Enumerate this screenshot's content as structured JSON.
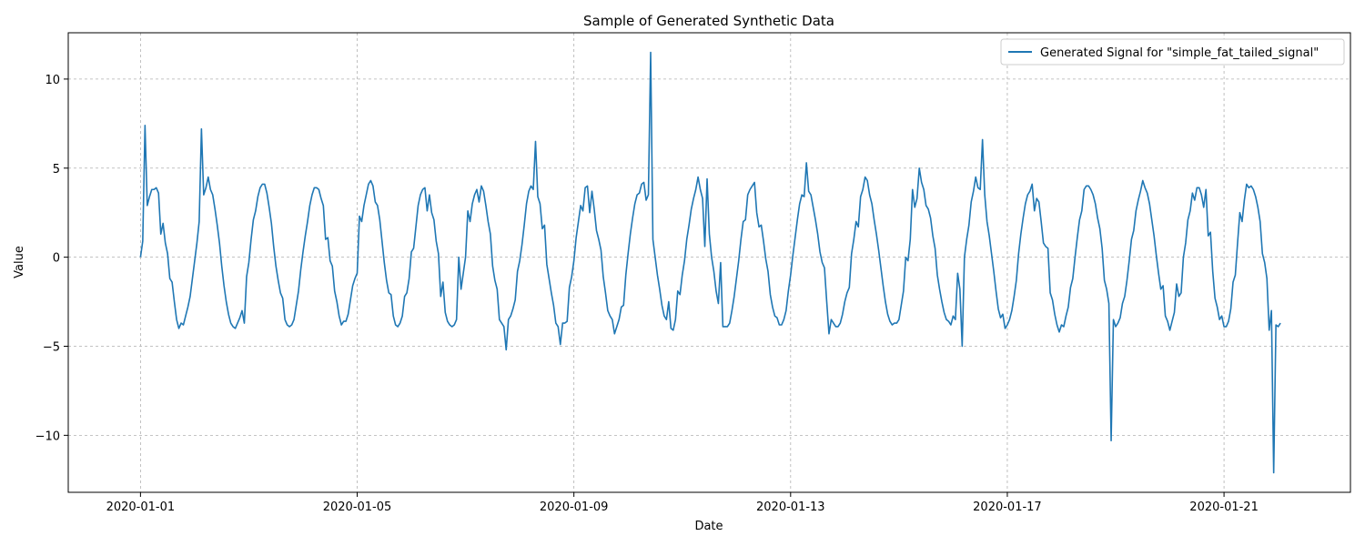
{
  "chart_data": {
    "type": "line",
    "title": "Sample of Generated Synthetic Data",
    "xlabel": "Date",
    "ylabel": "Value",
    "xlim": [
      "2019-12-30T16:00",
      "2020-01-23T08:00"
    ],
    "ylim": [
      -13.2,
      12.6
    ],
    "x_ticks": [
      "2020-01-01",
      "2020-01-05",
      "2020-01-09",
      "2020-01-13",
      "2020-01-17",
      "2020-01-21"
    ],
    "y_ticks": [
      -10,
      -5,
      0,
      5,
      10
    ],
    "y_tick_labels": [
      "−10",
      "−5",
      "0",
      "5",
      "10"
    ],
    "grid": true,
    "legend_position": "top-right",
    "series": [
      {
        "name": "Generated Signal for \"simple_fat_tailed_signal\"",
        "color": "#1f77b4",
        "start": "2020-01-01T00:00",
        "interval_hours": 1,
        "values": [
          0.0,
          0.9,
          7.4,
          2.9,
          3.4,
          3.8,
          3.8,
          3.9,
          3.6,
          1.3,
          1.9,
          0.8,
          0.2,
          -1.2,
          -1.4,
          -2.5,
          -3.5,
          -4.0,
          -3.7,
          -3.8,
          -3.3,
          -2.8,
          -2.2,
          -1.2,
          -0.2,
          0.8,
          2.0,
          7.2,
          3.5,
          3.9,
          4.5,
          3.8,
          3.5,
          2.7,
          1.8,
          0.8,
          -0.5,
          -1.6,
          -2.5,
          -3.2,
          -3.7,
          -3.9,
          -4.0,
          -3.7,
          -3.4,
          -3.0,
          -3.7,
          -1.1,
          -0.3,
          1.0,
          2.1,
          2.6,
          3.4,
          3.9,
          4.1,
          4.1,
          3.6,
          2.8,
          1.9,
          0.6,
          -0.5,
          -1.3,
          -2.0,
          -2.3,
          -3.5,
          -3.8,
          -3.9,
          -3.8,
          -3.5,
          -2.7,
          -1.9,
          -0.7,
          0.3,
          1.2,
          2.0,
          2.9,
          3.5,
          3.9,
          3.9,
          3.8,
          3.3,
          2.9,
          1.0,
          1.1,
          -0.2,
          -0.5,
          -1.9,
          -2.5,
          -3.3,
          -3.8,
          -3.6,
          -3.6,
          -3.2,
          -2.4,
          -1.6,
          -1.2,
          -0.9,
          2.3,
          2.0,
          2.9,
          3.5,
          4.1,
          4.3,
          4.0,
          3.1,
          2.9,
          2.1,
          0.9,
          -0.3,
          -1.3,
          -2.0,
          -2.1,
          -3.3,
          -3.8,
          -3.9,
          -3.7,
          -3.3,
          -2.2,
          -2.0,
          -1.2,
          0.3,
          0.5,
          1.7,
          2.9,
          3.5,
          3.8,
          3.9,
          2.6,
          3.5,
          2.5,
          2.1,
          0.9,
          0.2,
          -2.2,
          -1.4,
          -3.1,
          -3.6,
          -3.8,
          -3.9,
          -3.8,
          -3.5,
          0.0,
          -1.8,
          -0.9,
          0.0,
          2.6,
          2.0,
          3.0,
          3.5,
          3.8,
          3.1,
          4.0,
          3.7,
          2.9,
          2.0,
          1.3,
          -0.5,
          -1.3,
          -1.8,
          -3.5,
          -3.7,
          -3.9,
          -5.2,
          -3.5,
          -3.3,
          -2.9,
          -2.4,
          -0.8,
          -0.2,
          0.7,
          1.8,
          3.0,
          3.7,
          4.0,
          3.8,
          6.5,
          3.4,
          3.0,
          1.6,
          1.8,
          -0.4,
          -1.2,
          -2.0,
          -2.7,
          -3.7,
          -3.9,
          -4.9,
          -3.7,
          -3.7,
          -3.6,
          -1.7,
          -1.1,
          -0.2,
          1.1,
          2.0,
          2.9,
          2.6,
          3.9,
          4.0,
          2.5,
          3.7,
          2.7,
          1.5,
          1.0,
          0.4,
          -1.1,
          -2.0,
          -3.0,
          -3.3,
          -3.5,
          -4.3,
          -3.9,
          -3.5,
          -2.8,
          -2.7,
          -1.0,
          0.2,
          1.3,
          2.2,
          3.0,
          3.5,
          3.6,
          4.1,
          4.2,
          3.2,
          3.5,
          11.5,
          1.0,
          0.0,
          -1.0,
          -1.8,
          -2.7,
          -3.3,
          -3.5,
          -2.5,
          -4.0,
          -4.1,
          -3.5,
          -1.9,
          -2.1,
          -1.0,
          -0.2,
          1.0,
          1.8,
          2.7,
          3.3,
          3.8,
          4.5,
          3.8,
          3.3,
          0.6,
          4.4,
          1.3,
          0.0,
          -0.8,
          -1.9,
          -2.6,
          -0.3,
          -3.9,
          -3.9,
          -3.9,
          -3.7,
          -3.0,
          -2.2,
          -1.2,
          -0.2,
          1.0,
          2.0,
          2.1,
          3.5,
          3.8,
          4.0,
          4.2,
          2.5,
          1.7,
          1.8,
          0.9,
          -0.1,
          -0.8,
          -2.1,
          -2.8,
          -3.3,
          -3.4,
          -3.8,
          -3.8,
          -3.5,
          -3.0,
          -1.9,
          -1.0,
          0.1,
          1.1,
          2.1,
          3.0,
          3.5,
          3.4,
          5.3,
          3.7,
          3.5,
          2.8,
          2.1,
          1.3,
          0.3,
          -0.3,
          -0.6,
          -2.5,
          -4.3,
          -3.5,
          -3.7,
          -3.9,
          -3.9,
          -3.7,
          -3.2,
          -2.5,
          -2.0,
          -1.7,
          0.2,
          1.0,
          2.0,
          1.7,
          3.4,
          3.8,
          4.5,
          4.3,
          3.5,
          3.0,
          2.1,
          1.3,
          0.4,
          -0.6,
          -1.6,
          -2.5,
          -3.2,
          -3.6,
          -3.8,
          -3.7,
          -3.7,
          -3.5,
          -2.7,
          -1.9,
          0.0,
          -0.2,
          1.0,
          3.8,
          2.8,
          3.3,
          5.0,
          4.2,
          3.8,
          2.9,
          2.7,
          2.2,
          1.2,
          0.5,
          -1.0,
          -1.8,
          -2.5,
          -3.1,
          -3.5,
          -3.6,
          -3.8,
          -3.3,
          -3.5,
          -0.9,
          -1.8,
          -5.0,
          0.0,
          1.0,
          1.8,
          3.1,
          3.7,
          4.5,
          3.9,
          3.8,
          6.6,
          3.5,
          2.0,
          1.2,
          0.2,
          -0.8,
          -1.9,
          -2.9,
          -3.4,
          -3.2,
          -4.0,
          -3.8,
          -3.5,
          -3.0,
          -2.2,
          -1.3,
          0.2,
          1.3,
          2.2,
          3.0,
          3.5,
          3.7,
          4.1,
          2.6,
          3.3,
          3.1,
          2.0,
          0.8,
          0.6,
          0.5,
          -2.0,
          -2.4,
          -3.2,
          -3.8,
          -4.2,
          -3.8,
          -3.9,
          -3.3,
          -2.8,
          -1.7,
          -1.2,
          0.0,
          1.1,
          2.1,
          2.6,
          3.8,
          4.0,
          4.0,
          3.8,
          3.5,
          3.0,
          2.2,
          1.6,
          0.5,
          -1.3,
          -1.8,
          -2.6,
          -10.3,
          -3.5,
          -3.9,
          -3.7,
          -3.4,
          -2.6,
          -2.2,
          -1.3,
          -0.2,
          1.0,
          1.5,
          2.6,
          3.2,
          3.7,
          4.3,
          3.9,
          3.6,
          3.0,
          2.1,
          1.2,
          0.1,
          -0.9,
          -1.8,
          -1.6,
          -3.3,
          -3.6,
          -4.1,
          -3.6,
          -3.1,
          -1.5,
          -2.2,
          -2.0,
          0.0,
          0.8,
          2.1,
          2.6,
          3.6,
          3.2,
          3.9,
          3.9,
          3.5,
          2.8,
          3.8,
          1.2,
          1.4,
          -0.8,
          -2.3,
          -2.8,
          -3.5,
          -3.3,
          -3.9,
          -3.9,
          -3.6,
          -2.9,
          -1.4,
          -1.0,
          0.8,
          2.5,
          2.0,
          3.2,
          4.1,
          3.9,
          4.0,
          3.8,
          3.4,
          2.8,
          2.0,
          0.2,
          -0.3,
          -1.2,
          -4.1,
          -3.0,
          -12.1,
          -3.8,
          -3.9,
          -3.7
        ]
      }
    ]
  }
}
